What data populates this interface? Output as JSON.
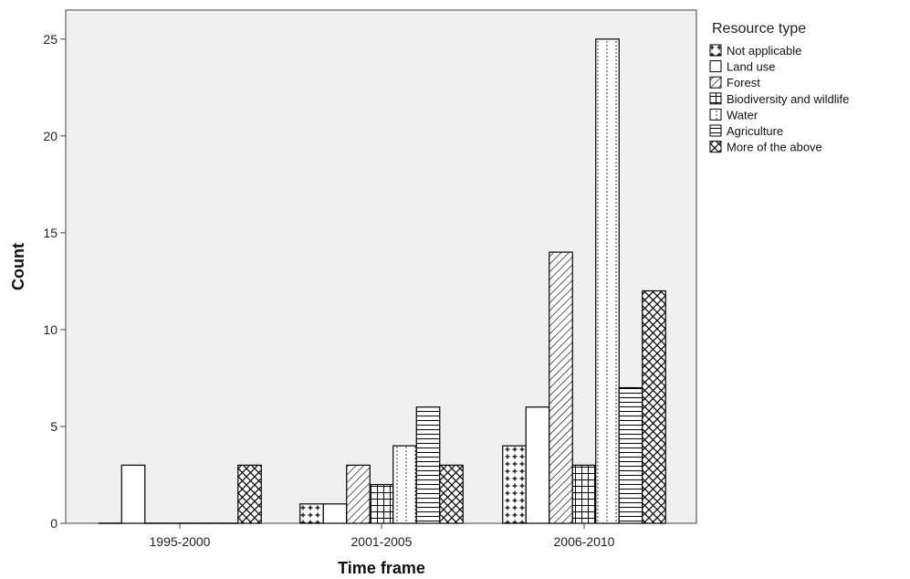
{
  "chart_data": {
    "type": "bar",
    "title": "",
    "xlabel": "Time frame",
    "ylabel": "Count",
    "ylim": [
      0,
      26.5
    ],
    "yticks": [
      0,
      5,
      10,
      15,
      20,
      25
    ],
    "categories": [
      "1995-2000",
      "2001-2005",
      "2006-2010"
    ],
    "legend_title": "Resource type",
    "legend_position": "right",
    "plot_background": "#f0f0f0",
    "series": [
      {
        "name": "Not applicable",
        "pattern": "plus",
        "values": [
          0,
          1,
          4
        ]
      },
      {
        "name": "Land use",
        "pattern": "none",
        "values": [
          3,
          1,
          6
        ]
      },
      {
        "name": "Forest",
        "pattern": "diagonal",
        "values": [
          0,
          3,
          14
        ]
      },
      {
        "name": "Biodiversity and wildlife",
        "pattern": "grid",
        "values": [
          0,
          2,
          3
        ]
      },
      {
        "name": "Water",
        "pattern": "dots",
        "values": [
          0,
          4,
          25
        ]
      },
      {
        "name": "Agriculture",
        "pattern": "horizontal",
        "values": [
          0,
          6,
          7
        ]
      },
      {
        "name": "More of the above",
        "pattern": "crosshatch",
        "values": [
          3,
          3,
          12
        ]
      }
    ]
  }
}
